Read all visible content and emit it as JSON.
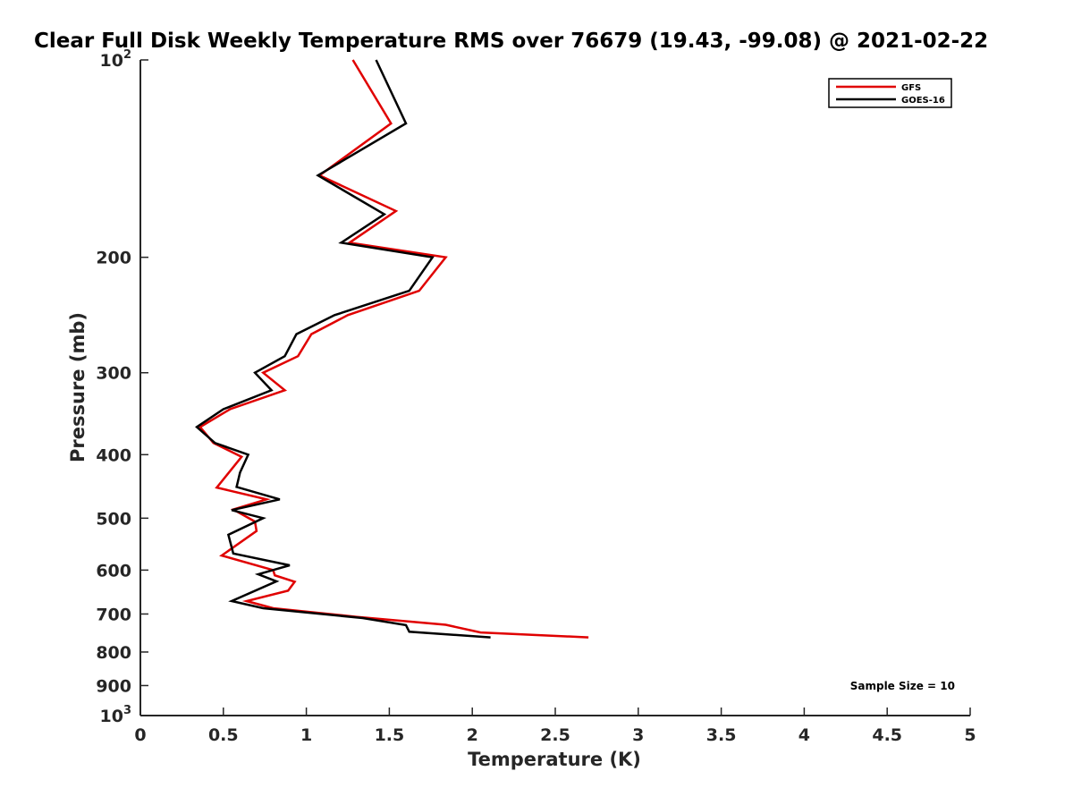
{
  "chart_data": {
    "type": "line",
    "title": "Clear Full Disk Weekly Temperature RMS over 76679 (19.43, -99.08) @ 2021-02-22",
    "xlabel": "Temperature (K)",
    "ylabel": "Pressure (mb)",
    "xlim": [
      0,
      5
    ],
    "ylim": [
      100,
      1000
    ],
    "y_scale": "log",
    "y_direction": "reversed",
    "x_ticks": [
      "0",
      "0.5",
      "1",
      "1.5",
      "2",
      "2.5",
      "3",
      "3.5",
      "4",
      "4.5",
      "5"
    ],
    "y_ticks": [
      {
        "value": 100,
        "label": "10",
        "exponent": "2"
      },
      {
        "value": 200,
        "label": "200",
        "exponent": ""
      },
      {
        "value": 300,
        "label": "300",
        "exponent": ""
      },
      {
        "value": 400,
        "label": "400",
        "exponent": ""
      },
      {
        "value": 500,
        "label": "500",
        "exponent": ""
      },
      {
        "value": 600,
        "label": "600",
        "exponent": ""
      },
      {
        "value": 700,
        "label": "700",
        "exponent": ""
      },
      {
        "value": 800,
        "label": "800",
        "exponent": ""
      },
      {
        "value": 900,
        "label": "900",
        "exponent": ""
      },
      {
        "value": 1000,
        "label": "10",
        "exponent": "3"
      }
    ],
    "grid": false,
    "legend_position": "top-right",
    "annotation": "Sample Size = 10",
    "series": [
      {
        "name": "GFS",
        "color": "#e00000",
        "points": [
          [
            1.28,
            100
          ],
          [
            1.51,
            125
          ],
          [
            1.08,
            150
          ],
          [
            1.54,
            170
          ],
          [
            1.26,
            190
          ],
          [
            1.84,
            200
          ],
          [
            1.68,
            225
          ],
          [
            1.25,
            245
          ],
          [
            1.03,
            262
          ],
          [
            0.95,
            283
          ],
          [
            0.74,
            300
          ],
          [
            0.87,
            319
          ],
          [
            0.54,
            341
          ],
          [
            0.36,
            363
          ],
          [
            0.44,
            384
          ],
          [
            0.61,
            403
          ],
          [
            0.46,
            449
          ],
          [
            0.76,
            468
          ],
          [
            0.56,
            485
          ],
          [
            0.69,
            506
          ],
          [
            0.7,
            523
          ],
          [
            0.49,
            570
          ],
          [
            0.8,
            600
          ],
          [
            0.81,
            611
          ],
          [
            0.93,
            625
          ],
          [
            0.89,
            645
          ],
          [
            0.64,
            669
          ],
          [
            0.8,
            686
          ],
          [
            1.3,
            707
          ],
          [
            1.84,
            727
          ],
          [
            2.05,
            747
          ],
          [
            2.7,
            760
          ]
        ]
      },
      {
        "name": "GOES-16",
        "color": "#000000",
        "points": [
          [
            1.42,
            100
          ],
          [
            1.6,
            125
          ],
          [
            1.07,
            150
          ],
          [
            1.47,
            172
          ],
          [
            1.21,
            190
          ],
          [
            1.76,
            200
          ],
          [
            1.62,
            225
          ],
          [
            1.17,
            245
          ],
          [
            0.94,
            262
          ],
          [
            0.87,
            283
          ],
          [
            0.69,
            300
          ],
          [
            0.79,
            319
          ],
          [
            0.5,
            341
          ],
          [
            0.34,
            363
          ],
          [
            0.45,
            384
          ],
          [
            0.65,
            400
          ],
          [
            0.6,
            426
          ],
          [
            0.58,
            448
          ],
          [
            0.84,
            468
          ],
          [
            0.55,
            486
          ],
          [
            0.74,
            500
          ],
          [
            0.53,
            530
          ],
          [
            0.56,
            566
          ],
          [
            0.9,
            590
          ],
          [
            0.71,
            609
          ],
          [
            0.82,
            624
          ],
          [
            0.55,
            669
          ],
          [
            0.74,
            686
          ],
          [
            1.34,
            710
          ],
          [
            1.6,
            728
          ],
          [
            1.62,
            745
          ],
          [
            2.11,
            760
          ]
        ]
      }
    ]
  }
}
